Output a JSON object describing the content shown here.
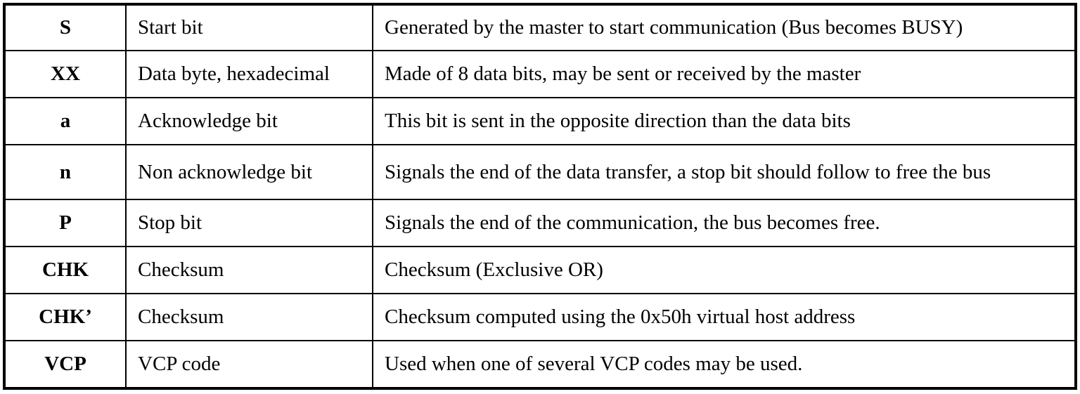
{
  "table": {
    "rows": [
      {
        "symbol": "S",
        "name": "Start bit",
        "description": "Generated by the master to start communication (Bus becomes BUSY)"
      },
      {
        "symbol": "XX",
        "name": "Data byte, hexadecimal",
        "description": "Made of 8 data bits, may be sent or received by the master"
      },
      {
        "symbol": "a",
        "name": "Acknowledge bit",
        "description": "This bit is sent in the opposite direction than the data bits"
      },
      {
        "symbol": "n",
        "name": "Non acknowledge bit",
        "description": "Signals the end of the data transfer, a stop bit should follow to free the bus"
      },
      {
        "symbol": "P",
        "name": "Stop bit",
        "description": "Signals the end of the communication, the bus becomes free."
      },
      {
        "symbol": "CHK",
        "name": "Checksum",
        "description": "Checksum (Exclusive OR)"
      },
      {
        "symbol": "CHK’",
        "name": "Checksum",
        "description": "Checksum computed using the 0x50h virtual host address"
      },
      {
        "symbol": "VCP",
        "name": "VCP code",
        "description": "Used when one of several VCP codes may be used."
      }
    ]
  }
}
